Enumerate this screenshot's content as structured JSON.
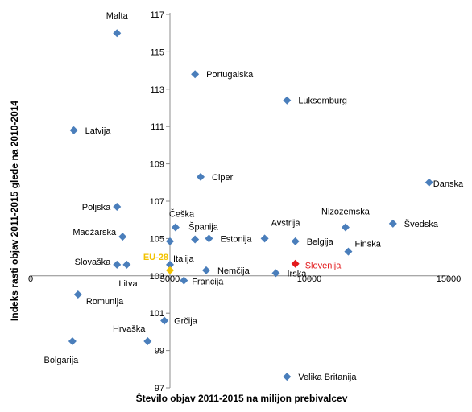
{
  "chart_data": {
    "type": "scatter",
    "title": "",
    "xlabel": "Število objav 2011-2015 na milijon prebivalcev",
    "ylabel": "Indeks rasti objav 2011-2015 glede na 2010-2014",
    "xlim": [
      0,
      15000
    ],
    "ylim": [
      97,
      117
    ],
    "x_ticks": [
      "0",
      "5000",
      "10000",
      "15000"
    ],
    "y_ticks": [
      "97",
      "99",
      "101",
      "103",
      "105",
      "107",
      "109",
      "111",
      "113",
      "115",
      "117"
    ],
    "x_axis_crosses_y_at": 103,
    "grid": false,
    "legend": "none",
    "colors": {
      "default": "#4a7ebb",
      "highlight": "#e31a1c",
      "eu": "#f2c200",
      "axis": "#8c8c8c",
      "text": "#000000"
    },
    "points": [
      {
        "label": "Malta",
        "x": 3100,
        "y": 116.0
      },
      {
        "label": "Portugalska",
        "x": 5900,
        "y": 113.8
      },
      {
        "label": "Luksemburg",
        "x": 9200,
        "y": 112.4
      },
      {
        "label": "Latvija",
        "x": 1550,
        "y": 110.8
      },
      {
        "label": "Ciper",
        "x": 6100,
        "y": 108.3
      },
      {
        "label": "Danska",
        "x": 14300,
        "y": 108.0
      },
      {
        "label": "Poljska",
        "x": 3100,
        "y": 106.7
      },
      {
        "label": "Češka",
        "x": 5200,
        "y": 105.6
      },
      {
        "label": "Švedska",
        "x": 13000,
        "y": 105.8
      },
      {
        "label": "Nizozemska",
        "x": 11300,
        "y": 105.6
      },
      {
        "label": "Madžarska",
        "x": 3300,
        "y": 105.1
      },
      {
        "label": "Španija",
        "x": 5900,
        "y": 104.95
      },
      {
        "label": "Estonija",
        "x": 6400,
        "y": 105.0
      },
      {
        "label": "Avstrija",
        "x": 8400,
        "y": 105.0
      },
      {
        "label": "",
        "x": 5000,
        "y": 104.85
      },
      {
        "label": "Belgija",
        "x": 9500,
        "y": 104.85
      },
      {
        "label": "Finska",
        "x": 11400,
        "y": 104.3
      },
      {
        "label": "Slovaška",
        "x": 3100,
        "y": 103.6
      },
      {
        "label": "Litva",
        "x": 3450,
        "y": 103.6
      },
      {
        "label": "Italija",
        "x": 5000,
        "y": 103.6
      },
      {
        "label": "Nemčija",
        "x": 6300,
        "y": 103.3
      },
      {
        "label": "Irska",
        "x": 8800,
        "y": 103.15
      },
      {
        "label": "Slovenija",
        "x": 9500,
        "y": 103.65,
        "highlight": true
      },
      {
        "label": "EU-28",
        "x": 5000,
        "y": 103.3,
        "eu": true
      },
      {
        "label": "Francija",
        "x": 5500,
        "y": 102.75
      },
      {
        "label": "Romunija",
        "x": 1700,
        "y": 102.0
      },
      {
        "label": "Grčija",
        "x": 4800,
        "y": 100.6
      },
      {
        "label": "Hrvaška",
        "x": 4200,
        "y": 99.5
      },
      {
        "label": "Bolgarija",
        "x": 1500,
        "y": 99.5
      },
      {
        "label": "Velika Britanija",
        "x": 9200,
        "y": 97.6
      }
    ]
  }
}
